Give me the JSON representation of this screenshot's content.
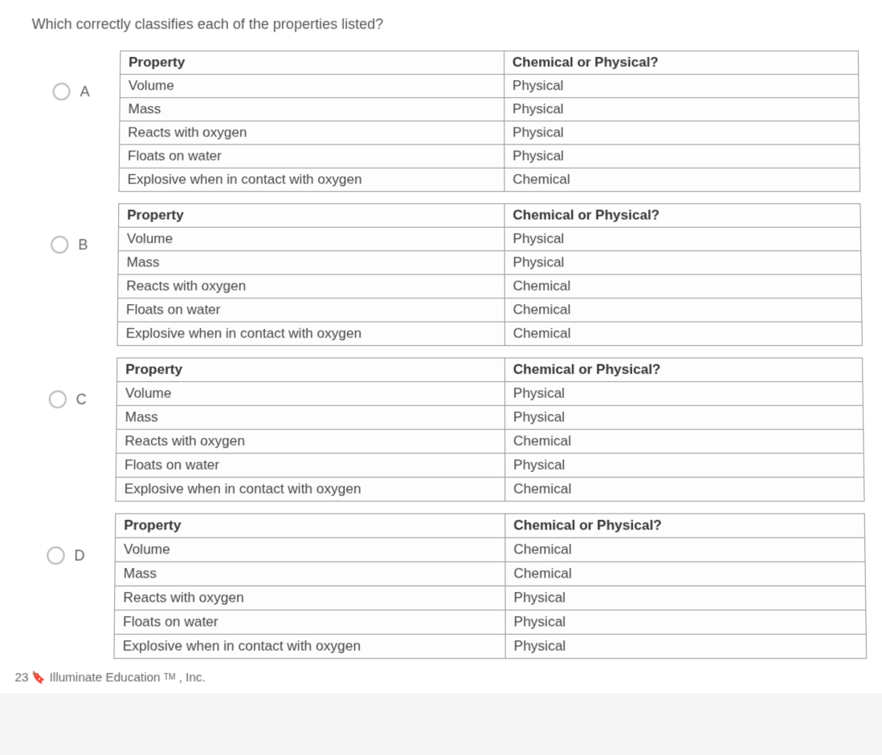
{
  "question": "Which correctly classifies each of the properties listed?",
  "headers": {
    "property": "Property",
    "classification": "Chemical or Physical?"
  },
  "options": [
    {
      "letter": "A",
      "rows": [
        {
          "property": "Volume",
          "classification": "Physical"
        },
        {
          "property": "Mass",
          "classification": "Physical"
        },
        {
          "property": "Reacts with oxygen",
          "classification": "Physical"
        },
        {
          "property": "Floats on water",
          "classification": "Physical"
        },
        {
          "property": "Explosive when in contact with oxygen",
          "classification": "Chemical"
        }
      ]
    },
    {
      "letter": "B",
      "rows": [
        {
          "property": "Volume",
          "classification": "Physical"
        },
        {
          "property": "Mass",
          "classification": "Physical"
        },
        {
          "property": "Reacts with oxygen",
          "classification": "Chemical"
        },
        {
          "property": "Floats on water",
          "classification": "Chemical"
        },
        {
          "property": "Explosive when in contact with oxygen",
          "classification": "Chemical"
        }
      ]
    },
    {
      "letter": "C",
      "rows": [
        {
          "property": "Volume",
          "classification": "Physical"
        },
        {
          "property": "Mass",
          "classification": "Physical"
        },
        {
          "property": "Reacts with oxygen",
          "classification": "Chemical"
        },
        {
          "property": "Floats on water",
          "classification": "Physical"
        },
        {
          "property": "Explosive when in contact with oxygen",
          "classification": "Chemical"
        }
      ]
    },
    {
      "letter": "D",
      "rows": [
        {
          "property": "Volume",
          "classification": "Chemical"
        },
        {
          "property": "Mass",
          "classification": "Chemical"
        },
        {
          "property": "Reacts with oxygen",
          "classification": "Physical"
        },
        {
          "property": "Floats on water",
          "classification": "Physical"
        },
        {
          "property": "Explosive when in contact with oxygen",
          "classification": "Physical"
        }
      ]
    }
  ],
  "footer": {
    "prefix": "23",
    "brand": "Illuminate Education",
    "tm": "TM",
    "suffix": ", Inc."
  }
}
